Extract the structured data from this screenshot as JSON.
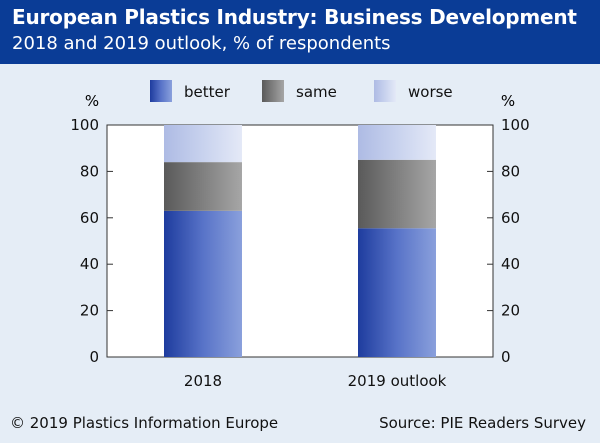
{
  "header": {
    "title": "European Plastics Industry: Business Development",
    "subtitle": "2018 and 2019 outlook, % of respondents"
  },
  "footer": {
    "copyright": "© 2019 Plastics Information Europe",
    "source": "Source: PIE Readers Survey"
  },
  "colors": {
    "header_bg": "#0a3c96",
    "page_bg": "#e5edf6",
    "better": "#3b57b4",
    "same": "#777777",
    "worse": "#c8d2ee"
  },
  "chart_data": {
    "type": "bar",
    "stacked": true,
    "categories": [
      "2018",
      "2019 outlook"
    ],
    "series": [
      {
        "name": "better",
        "values": [
          63,
          55.5
        ]
      },
      {
        "name": "same",
        "values": [
          21,
          29.5
        ]
      },
      {
        "name": "worse",
        "values": [
          16,
          15
        ]
      }
    ],
    "ylabel_left": "%",
    "ylabel_right": "%",
    "ylim": [
      0,
      100
    ],
    "yticks": [
      0,
      20,
      40,
      60,
      80,
      100
    ],
    "grid": false,
    "legend": "top-center"
  }
}
